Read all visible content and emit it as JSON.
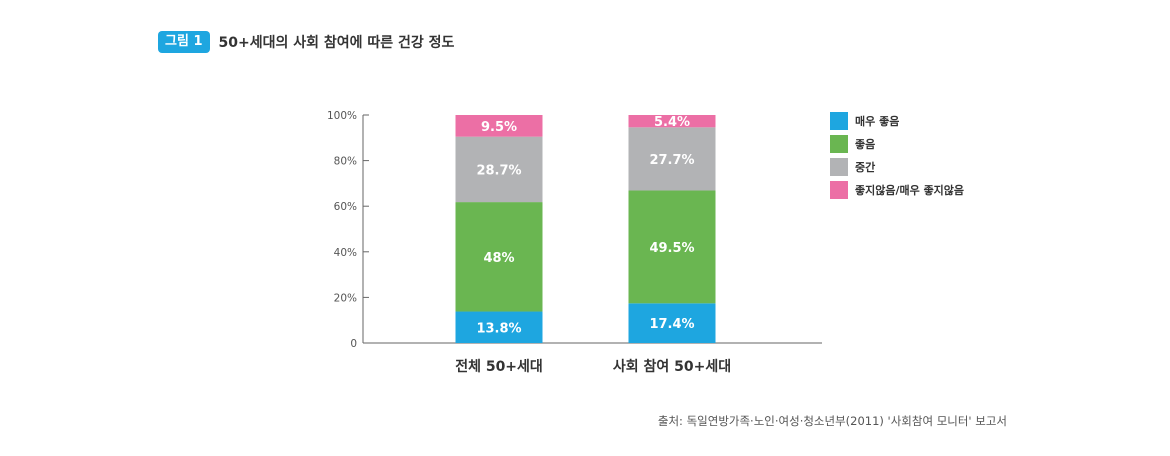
{
  "header": {
    "badge": "그림 1",
    "title": "50+세대의 사회 참여에 따른 건강 정도"
  },
  "chart_data": {
    "type": "bar",
    "stacked": true,
    "categories": [
      "전체 50+세대",
      "사회 참여 50+세대"
    ],
    "series": [
      {
        "name": "매우 좋음",
        "values": [
          13.8,
          17.4
        ],
        "labels": [
          "13.8%",
          "17.4%"
        ],
        "color": "#1ea6e0"
      },
      {
        "name": "좋음",
        "values": [
          48,
          49.5
        ],
        "labels": [
          "48%",
          "49.5%"
        ],
        "color": "#6ab651"
      },
      {
        "name": "중간",
        "values": [
          28.7,
          27.7
        ],
        "labels": [
          "28.7%",
          "27.7%"
        ],
        "color": "#b2b3b5"
      },
      {
        "name": "좋지않음/매우 좋지않음",
        "values": [
          9.5,
          5.4
        ],
        "labels": [
          "9.5%",
          "5.4%"
        ],
        "color": "#ec6fa5"
      }
    ],
    "ylim": [
      0,
      100
    ],
    "yticks": [
      0,
      20,
      40,
      60,
      80,
      100
    ],
    "ytick_labels": [
      "0",
      "20%",
      "40%",
      "60%",
      "80%",
      "100%"
    ],
    "legend_position": "right"
  },
  "source": "출처: 독일연방가족·노인·여성·청소년부(2011) '사회참여 모니터' 보고서"
}
